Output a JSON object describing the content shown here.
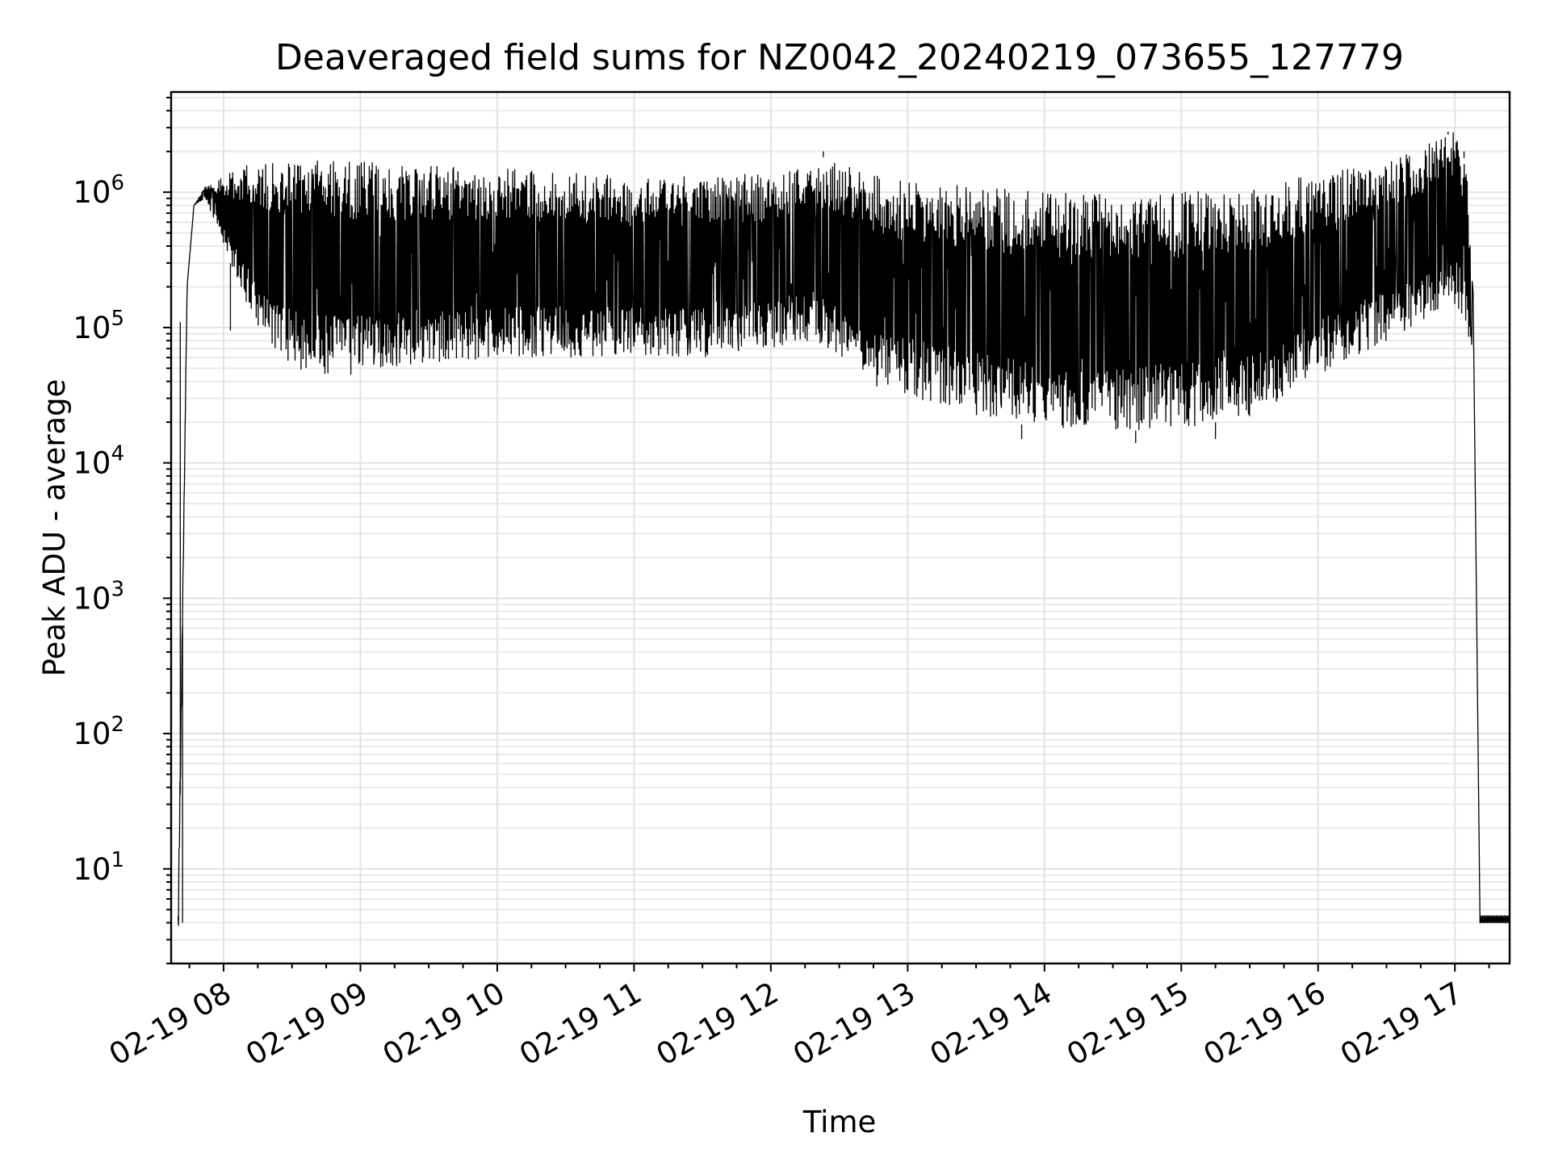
{
  "chart_data": {
    "type": "line",
    "title": "Deaveraged field sums for NZ0042_20240219_073655_127779",
    "xlabel": "Time",
    "ylabel": "Peak ADU - average",
    "yscale": "log",
    "grid": true,
    "xlim": [
      "2024-02-19 07:37",
      "2024-02-19 17:24"
    ],
    "ylim": [
      2,
      5500000
    ],
    "x_ticks": [
      {
        "value": "2024-02-19 08:00",
        "label": "02-19 08"
      },
      {
        "value": "2024-02-19 09:00",
        "label": "02-19 09"
      },
      {
        "value": "2024-02-19 10:00",
        "label": "02-19 10"
      },
      {
        "value": "2024-02-19 11:00",
        "label": "02-19 11"
      },
      {
        "value": "2024-02-19 12:00",
        "label": "02-19 12"
      },
      {
        "value": "2024-02-19 13:00",
        "label": "02-19 13"
      },
      {
        "value": "2024-02-19 14:00",
        "label": "02-19 14"
      },
      {
        "value": "2024-02-19 15:00",
        "label": "02-19 15"
      },
      {
        "value": "2024-02-19 16:00",
        "label": "02-19 16"
      },
      {
        "value": "2024-02-19 17:00",
        "label": "02-19 17"
      }
    ],
    "y_ticks": [
      {
        "value": 10,
        "base": "10",
        "exp": "1"
      },
      {
        "value": 100,
        "base": "10",
        "exp": "2"
      },
      {
        "value": 1000,
        "base": "10",
        "exp": "3"
      },
      {
        "value": 10000,
        "base": "10",
        "exp": "4"
      },
      {
        "value": 100000,
        "base": "10",
        "exp": "5"
      },
      {
        "value": 1000000,
        "base": "10",
        "exp": "6"
      }
    ],
    "series": [
      {
        "color": "#000000",
        "envelope": {
          "x": [
            "2024-02-19 07:40",
            "2024-02-19 07:44",
            "2024-02-19 07:47",
            "2024-02-19 07:52",
            "2024-02-19 08:00",
            "2024-02-19 08:10",
            "2024-02-19 08:20",
            "2024-02-19 08:30",
            "2024-02-19 08:45",
            "2024-02-19 09:00",
            "2024-02-19 09:30",
            "2024-02-19 10:00",
            "2024-02-19 10:30",
            "2024-02-19 11:00",
            "2024-02-19 11:30",
            "2024-02-19 12:00",
            "2024-02-19 12:20",
            "2024-02-19 12:40",
            "2024-02-19 13:00",
            "2024-02-19 13:30",
            "2024-02-19 14:00",
            "2024-02-19 14:30",
            "2024-02-19 15:00",
            "2024-02-19 15:30",
            "2024-02-19 15:45",
            "2024-02-19 16:00",
            "2024-02-19 16:30",
            "2024-02-19 17:00",
            "2024-02-19 17:05",
            "2024-02-19 17:08"
          ],
          "upper": [
            5,
            200000,
            800000,
            1100000,
            1300000,
            1600000,
            1700000,
            1750000,
            1700000,
            1700000,
            1600000,
            1500000,
            1400000,
            1300000,
            1300000,
            1400000,
            1900000,
            1400000,
            1200000,
            1100000,
            1000000,
            1000000,
            1000000,
            1050000,
            1200000,
            1400000,
            1700000,
            2800000,
            1600000,
            300000
          ],
          "lower": [
            2,
            200000,
            800000,
            900000,
            400000,
            150000,
            70000,
            50000,
            45000,
            45000,
            55000,
            60000,
            60000,
            60000,
            60000,
            70000,
            80000,
            40000,
            30000,
            22000,
            18000,
            17000,
            18000,
            22000,
            30000,
            45000,
            80000,
            150000,
            100000,
            40000
          ]
        },
        "spikes": [
          {
            "x": "2024-02-19 07:41",
            "y": 110000
          },
          {
            "x": "2024-02-19 07:42",
            "y": 4
          },
          {
            "x": "2024-02-19 08:03",
            "y": 95000
          },
          {
            "x": "2024-02-19 12:23",
            "y": 2000000
          },
          {
            "x": "2024-02-19 13:50",
            "y": 15000
          },
          {
            "x": "2024-02-19 14:40",
            "y": 14000
          },
          {
            "x": "2024-02-19 15:15",
            "y": 15000
          },
          {
            "x": "2024-02-19 16:57",
            "y": 2800000
          },
          {
            "x": "2024-02-19 17:04",
            "y": 2000000
          }
        ],
        "tail": {
          "x": [
            "2024-02-19 17:08",
            "2024-02-19 17:11",
            "2024-02-19 17:24"
          ],
          "y": [
            40000,
            4,
            4
          ],
          "tail_upper": 4.5
        }
      }
    ]
  }
}
